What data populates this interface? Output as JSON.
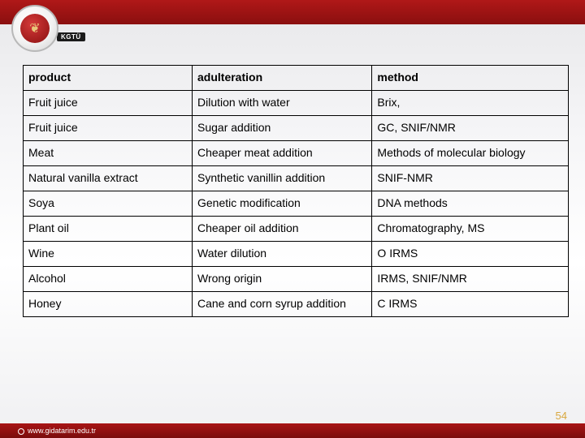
{
  "logo": {
    "label": "KGTÜ",
    "glyph": "❦"
  },
  "table": {
    "columns": [
      {
        "key": "product",
        "header": "product"
      },
      {
        "key": "adulteration",
        "header": "adulteration"
      },
      {
        "key": "method",
        "header": "method"
      }
    ],
    "rows": [
      {
        "product": "Fruit juice",
        "adulteration": "Dilution with water",
        "method": "Brix,"
      },
      {
        "product": "Fruit juice",
        "adulteration": "Sugar addition",
        "method": "GC, SNIF/NMR"
      },
      {
        "product": "Meat",
        "adulteration": "Cheaper meat addition",
        "method": "Methods of molecular biology"
      },
      {
        "product": "Natural vanilla extract",
        "adulteration": "Synthetic vanillin addition",
        "method": " SNIF-NMR"
      },
      {
        "product": "Soya",
        "adulteration": "Genetic modification",
        "method": "DNA  methods"
      },
      {
        "product": "Plant oil",
        "adulteration": "Cheaper oil addition",
        "method": "Chromatography, MS"
      },
      {
        "product": "Wine",
        "adulteration": "Water dilution",
        "method": "O IRMS"
      },
      {
        "product": "Alcohol",
        "adulteration": "Wrong origin",
        "method": "IRMS, SNIF/NMR"
      },
      {
        "product": "Honey",
        "adulteration": "Cane and corn syrup addition",
        "method": "C IRMS"
      }
    ]
  },
  "footer": {
    "url": "www.gidatarim.edu.tr"
  },
  "page_number": "54",
  "style": {
    "font_family": "Comic Sans MS",
    "cell_font_size": 14,
    "header_bold": true,
    "border_color": "#000000",
    "topbar_gradient": [
      "#b01818",
      "#8a0f0f"
    ],
    "bottombar_gradient": [
      "#a81515",
      "#7a0c0c"
    ],
    "pagenum_color": "#d9a83f",
    "col_widths_pct": [
      31,
      33,
      36
    ]
  }
}
